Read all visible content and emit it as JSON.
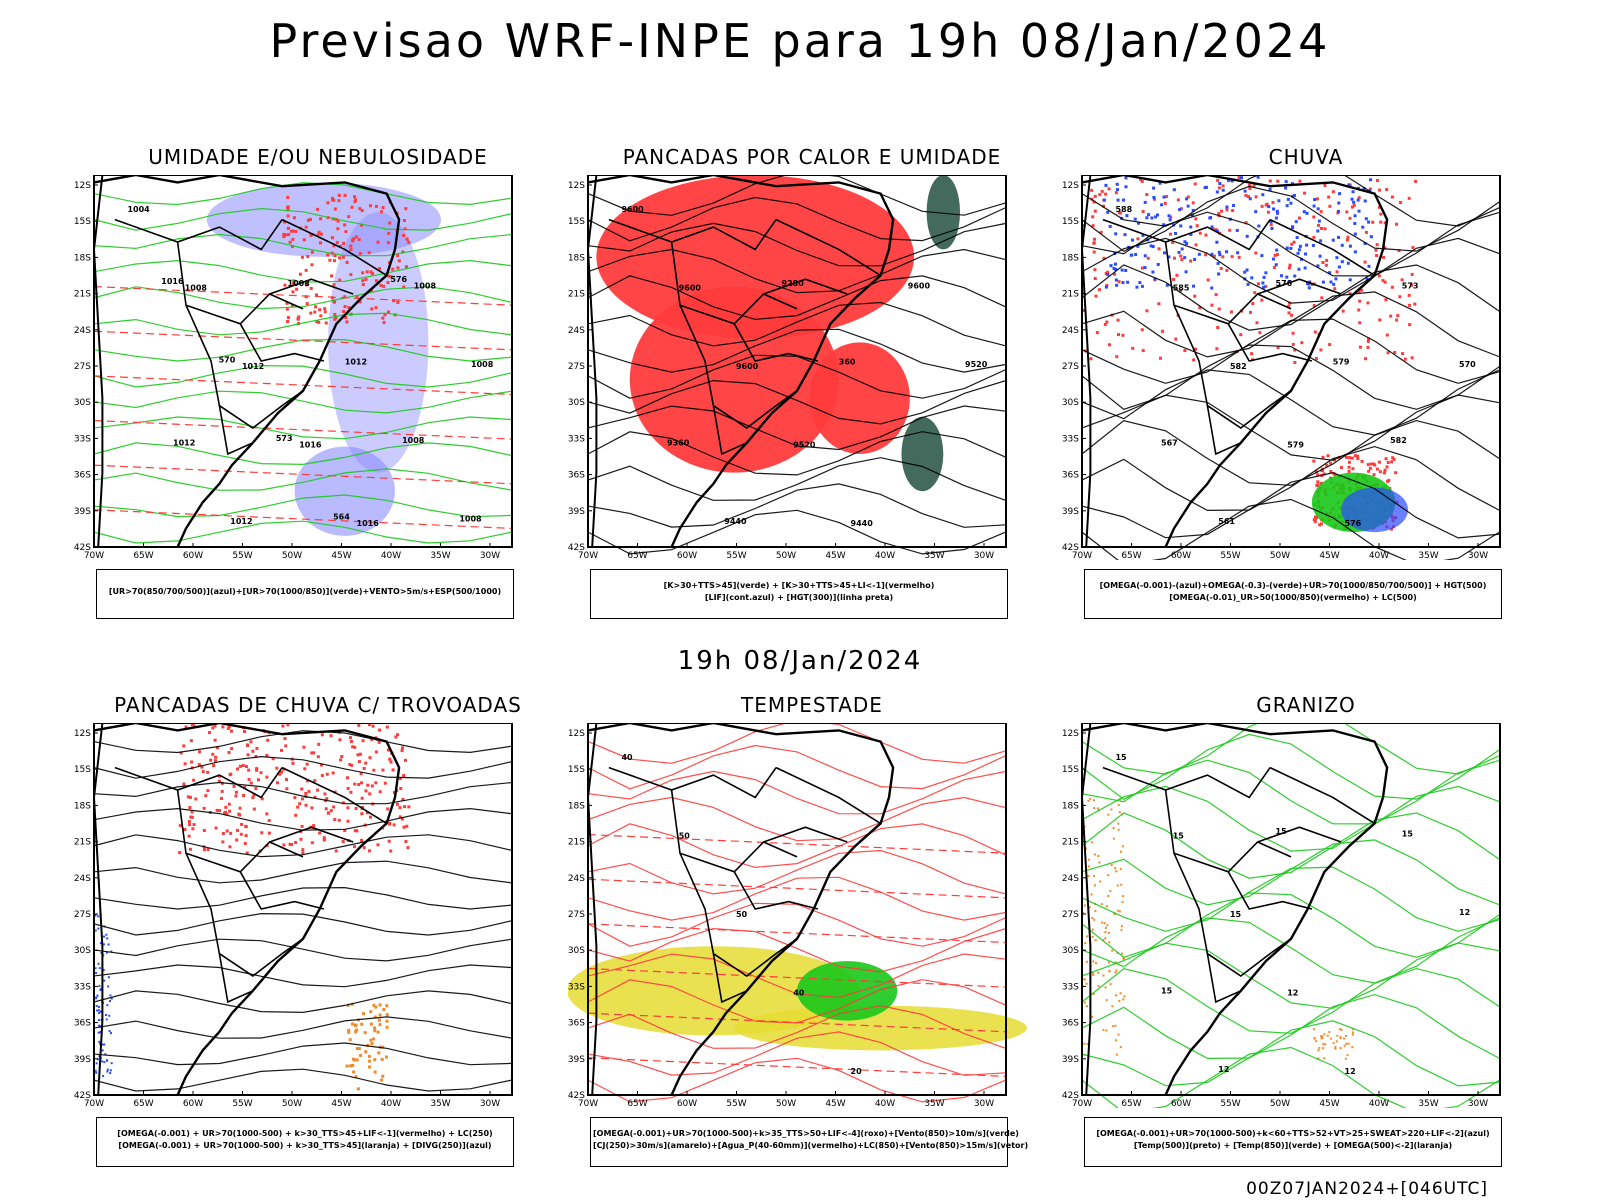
{
  "title": "Previsao WRF-INPE  para 19h 08/Jan/2024",
  "mid_title": "19h 08/Jan/2024",
  "footer": "00Z07JAN2024+[046UTC]",
  "axes": {
    "lat_labels": [
      "12S",
      "15S",
      "18S",
      "21S",
      "24S",
      "27S",
      "30S",
      "33S",
      "36S",
      "39S",
      "42S"
    ],
    "lon_labels": [
      "70W",
      "65W",
      "60W",
      "55W",
      "50W",
      "45W",
      "40W",
      "35W",
      "30W"
    ]
  },
  "colors": {
    "blue_fill": "#8c8cff",
    "green": "#19c819",
    "red": "#ff3b3b",
    "dark_green": "#2f5a4a",
    "yellow": "#e6dc32",
    "orange": "#f08a2a",
    "blue": "#2a4bff"
  },
  "panels": [
    {
      "title": "UMIDADE E/OU NEBULOSIDADE",
      "legend": [
        "[UR>70(850/700/500)](azul)+[UR>70(1000/850)](verde)+VENTO>5m/s+ESP(500/1000)"
      ],
      "contour_labels": [
        "1004",
        "1008",
        "1012",
        "1016",
        "1016",
        "1008",
        "1008",
        "1012",
        "1012",
        "1008",
        "1012",
        "1008",
        "1008",
        "1016",
        "570",
        "573",
        "564",
        "576"
      ]
    },
    {
      "title": "PANCADAS POR CALOR E UMIDADE",
      "legend": [
        "[K>30+TTS>45](verde) + [K>30+TTS>45+LI<-1](vermelho)",
        "[LIF](cont.azul) + [HGT(300)](linha preta)"
      ],
      "contour_labels": [
        "9600",
        "9600",
        "9600",
        "9520",
        "9440",
        "9600",
        "9520",
        "9360",
        "9440",
        "9280",
        "360"
      ]
    },
    {
      "title": "CHUVA",
      "legend": [
        "[OMEGA(-0.001)-(azul)+OMEGA(-0.3)-(verde)+UR>70(1000/850/700/500)] + HGT(500)",
        "[OMEGA(-0.01)_UR>50(1000/850)(vermelho) + LC(500)"
      ],
      "contour_labels": [
        "588",
        "585",
        "582",
        "579",
        "576",
        "573",
        "570",
        "567",
        "561",
        "576",
        "579",
        "582"
      ]
    },
    {
      "title": "PANCADAS DE CHUVA C/ TROVOADAS",
      "legend": [
        "[OMEGA(-0.001) + UR>70(1000-500) + k>30_TTS>45+LIF<-1](vermelho) + LC(250)",
        "[OMEGA(-0.001) + UR>70(1000-500) + k>30_TTS>45](laranja) + [DIVG(250)](azul)"
      ],
      "contour_labels": []
    },
    {
      "title": "TEMPESTADE",
      "legend": [
        "[OMEGA(-0.001)+UR>70(1000-500)+k>35_TTS>50+LIF<-4](roxo)+[Vento(850)>10m/s](verde)",
        "[CJ(250)>30m/s](amarelo)+[Agua_P(40-60mm)](vermelho)+LC(850)+[Vento(850)>15m/s](vetor)"
      ],
      "contour_labels": [
        "40",
        "50",
        "50",
        "40",
        "20"
      ]
    },
    {
      "title": "GRANIZO",
      "legend": [
        "[OMEGA(-0.001)+UR>70(1000-500)+k<60+TTS>52+VT>25+SWEAT>220+LIF<-2](azul)",
        "[Temp(500)](preto) + [Temp(850)](verde) + [OMEGA(500)<-2](laranja)"
      ],
      "contour_labels": [
        "15",
        "15",
        "15",
        "12",
        "12",
        "15",
        "12",
        "15",
        "12",
        "15"
      ]
    }
  ]
}
